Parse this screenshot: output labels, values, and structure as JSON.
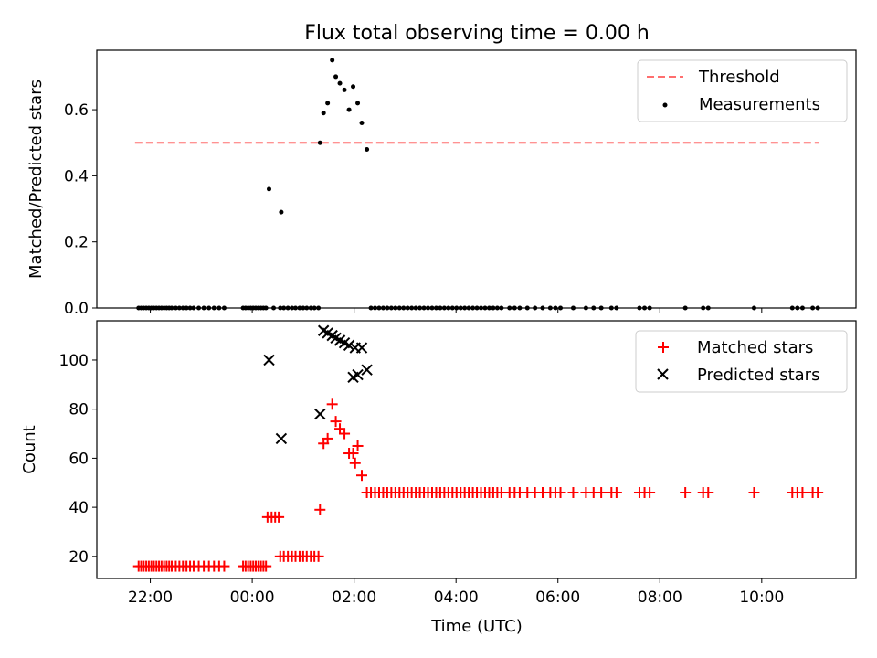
{
  "figure": {
    "title": "Flux total observing time = 0.00 h"
  },
  "chart_data": [
    {
      "type": "scatter",
      "panel": "top",
      "ylabel": "Matched/Predicted stars",
      "ylim": [
        0,
        0.78
      ],
      "yticks": [
        0.0,
        0.2,
        0.4,
        0.6
      ],
      "ytick_labels": [
        "0.0",
        "0.2",
        "0.4",
        "0.6"
      ],
      "x_unit": "hours since 00:00 UTC",
      "xlim": [
        -3.05,
        11.85
      ],
      "grid": false,
      "legend_position": "top-right",
      "legend": [
        "Threshold",
        "Measurements"
      ],
      "threshold": {
        "name": "Threshold",
        "y": 0.5,
        "x": [
          -2.3,
          11.12
        ],
        "color": "#ff6f6f"
      },
      "measurements": {
        "name": "Measurements",
        "color": "#000000",
        "points": [
          [
            0.33,
            0.36
          ],
          [
            0.57,
            0.29
          ],
          [
            1.33,
            0.5
          ],
          [
            1.4,
            0.59
          ],
          [
            1.48,
            0.62
          ],
          [
            1.57,
            0.75
          ],
          [
            1.64,
            0.7
          ],
          [
            1.72,
            0.68
          ],
          [
            1.81,
            0.66
          ],
          [
            1.9,
            0.6
          ],
          [
            1.98,
            0.67
          ],
          [
            2.07,
            0.62
          ],
          [
            2.15,
            0.56
          ],
          [
            2.25,
            0.48
          ]
        ],
        "zero_x": [
          -2.23,
          -2.18,
          -2.13,
          -2.08,
          -2.03,
          -1.98,
          -1.93,
          -1.88,
          -1.83,
          -1.78,
          -1.73,
          -1.68,
          -1.63,
          -1.58,
          -1.5,
          -1.43,
          -1.36,
          -1.29,
          -1.22,
          -1.15,
          -1.05,
          -0.95,
          -0.85,
          -0.75,
          -0.65,
          -0.55,
          -0.18,
          -0.13,
          -0.08,
          -0.03,
          0.02,
          0.07,
          0.12,
          0.17,
          0.22,
          0.27,
          0.42,
          0.55,
          0.62,
          0.7,
          0.78,
          0.85,
          0.93,
          1.0,
          1.07,
          1.15,
          1.22,
          1.3,
          2.33,
          2.41,
          2.49,
          2.57,
          2.65,
          2.73,
          2.81,
          2.89,
          2.97,
          3.05,
          3.13,
          3.21,
          3.29,
          3.37,
          3.45,
          3.53,
          3.61,
          3.69,
          3.77,
          3.85,
          3.93,
          4.01,
          4.09,
          4.17,
          4.25,
          4.33,
          4.41,
          4.49,
          4.57,
          4.65,
          4.73,
          4.81,
          4.89,
          5.05,
          5.15,
          5.25,
          5.4,
          5.55,
          5.7,
          5.85,
          5.95,
          6.05,
          6.3,
          6.55,
          6.7,
          6.85,
          7.05,
          7.15,
          7.6,
          7.7,
          7.8,
          8.5,
          8.85,
          8.95,
          9.85,
          10.6,
          10.7,
          10.8,
          11.0,
          11.1
        ]
      }
    },
    {
      "type": "scatter",
      "panel": "bottom",
      "xlabel": "Time (UTC)",
      "ylabel": "Count",
      "ylim": [
        11,
        116
      ],
      "yticks": [
        20,
        40,
        60,
        80,
        100
      ],
      "ytick_labels": [
        "20",
        "40",
        "60",
        "80",
        "100"
      ],
      "xticks": [
        -2,
        0,
        2,
        4,
        6,
        8,
        10
      ],
      "xtick_labels": [
        "22:00",
        "00:00",
        "02:00",
        "04:00",
        "06:00",
        "08:00",
        "10:00"
      ],
      "xlim": [
        -3.05,
        11.85
      ],
      "grid": false,
      "legend_position": "top-right",
      "legend": [
        "Matched stars",
        "Predicted stars"
      ],
      "matched": {
        "name": "Matched stars",
        "color": "#ff0000",
        "points": [
          [
            -2.23,
            16
          ],
          [
            -2.18,
            16
          ],
          [
            -2.13,
            16
          ],
          [
            -2.08,
            16
          ],
          [
            -2.03,
            16
          ],
          [
            -1.98,
            16
          ],
          [
            -1.93,
            16
          ],
          [
            -1.88,
            16
          ],
          [
            -1.83,
            16
          ],
          [
            -1.78,
            16
          ],
          [
            -1.73,
            16
          ],
          [
            -1.68,
            16
          ],
          [
            -1.63,
            16
          ],
          [
            -1.58,
            16
          ],
          [
            -1.5,
            16
          ],
          [
            -1.43,
            16
          ],
          [
            -1.36,
            16
          ],
          [
            -1.29,
            16
          ],
          [
            -1.22,
            16
          ],
          [
            -1.15,
            16
          ],
          [
            -1.05,
            16
          ],
          [
            -0.95,
            16
          ],
          [
            -0.85,
            16
          ],
          [
            -0.75,
            16
          ],
          [
            -0.65,
            16
          ],
          [
            -0.55,
            16
          ],
          [
            -0.18,
            16
          ],
          [
            -0.13,
            16
          ],
          [
            -0.08,
            16
          ],
          [
            -0.03,
            16
          ],
          [
            0.02,
            16
          ],
          [
            0.07,
            16
          ],
          [
            0.12,
            16
          ],
          [
            0.17,
            16
          ],
          [
            0.22,
            16
          ],
          [
            0.27,
            16
          ],
          [
            0.3,
            36
          ],
          [
            0.38,
            36
          ],
          [
            0.45,
            36
          ],
          [
            0.52,
            36
          ],
          [
            0.55,
            20
          ],
          [
            0.62,
            20
          ],
          [
            0.7,
            20
          ],
          [
            0.78,
            20
          ],
          [
            0.85,
            20
          ],
          [
            0.93,
            20
          ],
          [
            1.0,
            20
          ],
          [
            1.07,
            20
          ],
          [
            1.15,
            20
          ],
          [
            1.22,
            20
          ],
          [
            1.3,
            20
          ],
          [
            1.33,
            39
          ],
          [
            1.4,
            66
          ],
          [
            1.48,
            68
          ],
          [
            1.57,
            82
          ],
          [
            1.64,
            75
          ],
          [
            1.72,
            72
          ],
          [
            1.81,
            70
          ],
          [
            1.9,
            62
          ],
          [
            1.98,
            62
          ],
          [
            2.02,
            58
          ],
          [
            2.07,
            65
          ],
          [
            2.15,
            53
          ],
          [
            2.25,
            46
          ],
          [
            2.33,
            46
          ],
          [
            2.41,
            46
          ],
          [
            2.49,
            46
          ],
          [
            2.57,
            46
          ],
          [
            2.65,
            46
          ],
          [
            2.73,
            46
          ],
          [
            2.81,
            46
          ],
          [
            2.89,
            46
          ],
          [
            2.97,
            46
          ],
          [
            3.05,
            46
          ],
          [
            3.13,
            46
          ],
          [
            3.21,
            46
          ],
          [
            3.29,
            46
          ],
          [
            3.37,
            46
          ],
          [
            3.45,
            46
          ],
          [
            3.53,
            46
          ],
          [
            3.61,
            46
          ],
          [
            3.69,
            46
          ],
          [
            3.77,
            46
          ],
          [
            3.85,
            46
          ],
          [
            3.93,
            46
          ],
          [
            4.01,
            46
          ],
          [
            4.09,
            46
          ],
          [
            4.17,
            46
          ],
          [
            4.25,
            46
          ],
          [
            4.33,
            46
          ],
          [
            4.41,
            46
          ],
          [
            4.49,
            46
          ],
          [
            4.57,
            46
          ],
          [
            4.65,
            46
          ],
          [
            4.73,
            46
          ],
          [
            4.81,
            46
          ],
          [
            4.89,
            46
          ],
          [
            5.05,
            46
          ],
          [
            5.15,
            46
          ],
          [
            5.25,
            46
          ],
          [
            5.4,
            46
          ],
          [
            5.55,
            46
          ],
          [
            5.7,
            46
          ],
          [
            5.85,
            46
          ],
          [
            5.95,
            46
          ],
          [
            6.05,
            46
          ],
          [
            6.3,
            46
          ],
          [
            6.55,
            46
          ],
          [
            6.7,
            46
          ],
          [
            6.85,
            46
          ],
          [
            7.05,
            46
          ],
          [
            7.15,
            46
          ],
          [
            7.6,
            46
          ],
          [
            7.7,
            46
          ],
          [
            7.8,
            46
          ],
          [
            8.5,
            46
          ],
          [
            8.85,
            46
          ],
          [
            8.95,
            46
          ],
          [
            9.85,
            46
          ],
          [
            10.6,
            46
          ],
          [
            10.7,
            46
          ],
          [
            10.8,
            46
          ],
          [
            11.0,
            46
          ],
          [
            11.1,
            46
          ]
        ]
      },
      "predicted": {
        "name": "Predicted stars",
        "color": "#000000",
        "points": [
          [
            0.33,
            100
          ],
          [
            0.57,
            68
          ],
          [
            1.33,
            78
          ],
          [
            1.4,
            112
          ],
          [
            1.48,
            111
          ],
          [
            1.57,
            110
          ],
          [
            1.64,
            109
          ],
          [
            1.72,
            108
          ],
          [
            1.81,
            107
          ],
          [
            1.9,
            106
          ],
          [
            1.98,
            93
          ],
          [
            2.02,
            105
          ],
          [
            2.07,
            94
          ],
          [
            2.15,
            105
          ],
          [
            2.25,
            96
          ]
        ]
      }
    }
  ]
}
